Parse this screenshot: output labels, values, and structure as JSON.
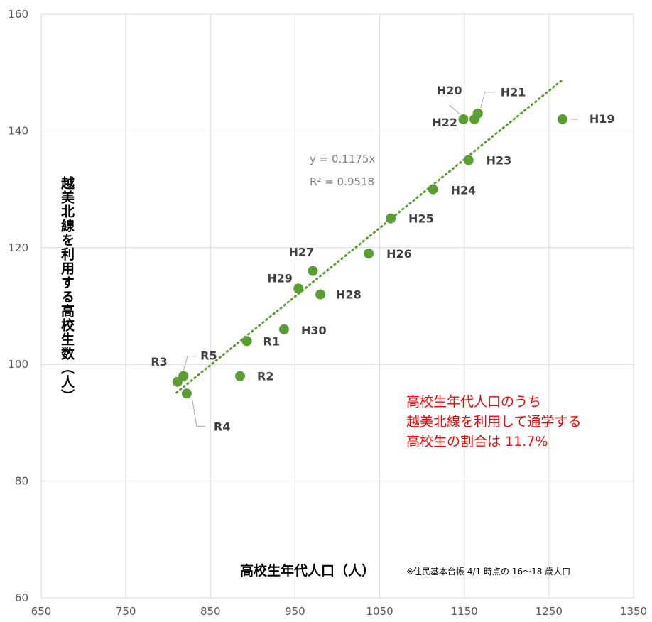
{
  "chart_data": {
    "type": "scatter",
    "xlabel": "高校生年代人口（人）",
    "ylabel": "越美北線を利用する高校生数（人）",
    "note": "※住民基本台帳 4/1 時点の 16〜18 歳人口",
    "xlim": [
      650,
      1350
    ],
    "ylim": [
      60,
      160
    ],
    "xticks": [
      "650",
      "750",
      "850",
      "950",
      "1050",
      "1150",
      "1250",
      "1350"
    ],
    "yticks": [
      "60",
      "80",
      "100",
      "120",
      "140",
      "160"
    ],
    "grid": true,
    "marker_color": "#5A9E32",
    "points": [
      {
        "label": "H19",
        "x": 1266,
        "y": 142
      },
      {
        "label": "H20",
        "x": 1149,
        "y": 142
      },
      {
        "label": "H21",
        "x": 1166,
        "y": 143
      },
      {
        "label": "H22",
        "x": 1162,
        "y": 142
      },
      {
        "label": "H23",
        "x": 1155,
        "y": 135
      },
      {
        "label": "H24",
        "x": 1113,
        "y": 130
      },
      {
        "label": "H25",
        "x": 1063,
        "y": 125
      },
      {
        "label": "H26",
        "x": 1037,
        "y": 119
      },
      {
        "label": "H27",
        "x": 971,
        "y": 116
      },
      {
        "label": "H28",
        "x": 980,
        "y": 112
      },
      {
        "label": "H29",
        "x": 954,
        "y": 113
      },
      {
        "label": "H30",
        "x": 937,
        "y": 106
      },
      {
        "label": "R1",
        "x": 893,
        "y": 104
      },
      {
        "label": "R2",
        "x": 885,
        "y": 98
      },
      {
        "label": "R3",
        "x": 811,
        "y": 97
      },
      {
        "label": "R4",
        "x": 822,
        "y": 95
      },
      {
        "label": "R5",
        "x": 818,
        "y": 98
      }
    ],
    "trendline": {
      "type": "linear-through-origin",
      "slope": 0.1175,
      "x_range": [
        810,
        1266
      ],
      "color": "#5A9E32",
      "equation": "y = 0.1175x",
      "r2": "R² = 0.9518"
    },
    "annotation": {
      "lines": [
        "高校生年代人口のうち",
        "越美北線を利用して通学する",
        "高校生の割合は  11.7%"
      ],
      "color": "#FF0000"
    }
  }
}
